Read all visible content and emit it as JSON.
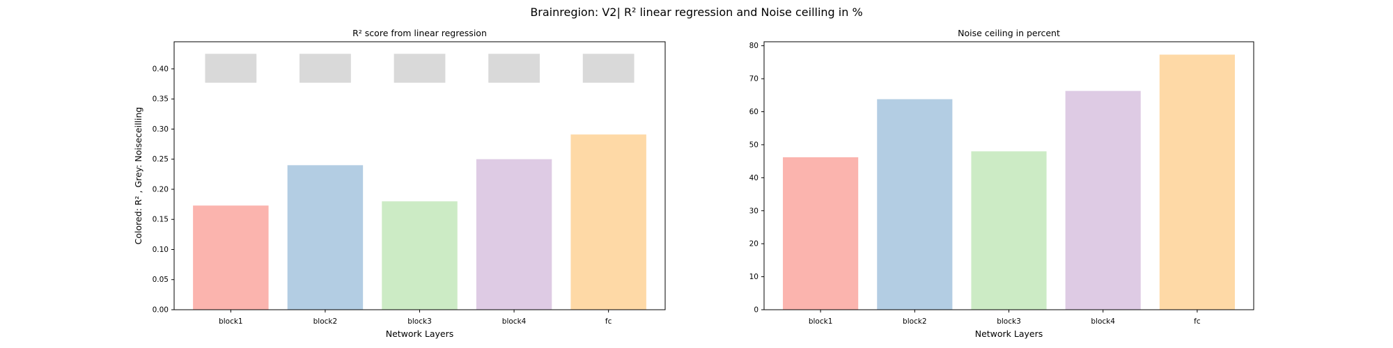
{
  "figure": {
    "title": "Brainregion: V2| R² linear regression and Noise ceilling in %"
  },
  "chart_data": [
    {
      "type": "bar",
      "title": "R² score from linear regression",
      "xlabel": "Network Layers",
      "ylabel": "Colored: R² , Grey: Noiseceilling",
      "categories": [
        "block1",
        "block2",
        "block3",
        "block4",
        "fc"
      ],
      "series": [
        {
          "values": [
            0.173,
            0.24,
            0.18,
            0.25,
            0.291
          ]
        },
        {
          "values": [
            0.425,
            0.425,
            0.425,
            0.425,
            0.425
          ],
          "bottom": 0.377
        }
      ],
      "colors": [
        "#fbb4ae",
        "#b3cde3",
        "#ccebc5",
        "#decbe4",
        "#fed9a6"
      ],
      "noise_color": "#d9d9d9",
      "ylim": [
        0,
        0.445
      ],
      "yticks": [
        "0.00",
        "0.05",
        "0.10",
        "0.15",
        "0.20",
        "0.25",
        "0.30",
        "0.35",
        "0.40"
      ],
      "grid": false
    },
    {
      "type": "bar",
      "title": "Noise ceiling in percent",
      "xlabel": "Network Layers",
      "ylabel": "",
      "categories": [
        "block1",
        "block2",
        "block3",
        "block4",
        "fc"
      ],
      "series": [
        {
          "values": [
            46.2,
            63.8,
            48.0,
            66.3,
            77.3
          ]
        }
      ],
      "colors": [
        "#fbb4ae",
        "#b3cde3",
        "#ccebc5",
        "#decbe4",
        "#fed9a6"
      ],
      "ylim": [
        0,
        81.2
      ],
      "yticks": [
        "0",
        "10",
        "20",
        "30",
        "40",
        "50",
        "60",
        "70",
        "80"
      ],
      "grid": false
    }
  ]
}
